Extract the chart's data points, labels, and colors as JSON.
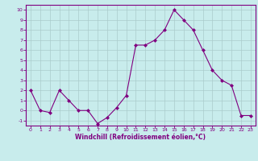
{
  "x": [
    0,
    1,
    2,
    3,
    4,
    5,
    6,
    7,
    8,
    9,
    10,
    11,
    12,
    13,
    14,
    15,
    16,
    17,
    18,
    19,
    20,
    21,
    22,
    23
  ],
  "y": [
    2,
    0,
    -0.2,
    2,
    1,
    0,
    0,
    -1.3,
    -0.7,
    0.3,
    1.5,
    6.5,
    6.5,
    7,
    8,
    10,
    9,
    8,
    6,
    4,
    3,
    2.5,
    -0.5,
    -0.5
  ],
  "line_color": "#800080",
  "marker": "D",
  "ylim": [
    -1.5,
    10.5
  ],
  "xlim": [
    -0.5,
    23.5
  ],
  "yticks": [
    -1,
    0,
    1,
    2,
    3,
    4,
    5,
    6,
    7,
    8,
    9,
    10
  ],
  "xticks": [
    0,
    1,
    2,
    3,
    4,
    5,
    6,
    7,
    8,
    9,
    10,
    11,
    12,
    13,
    14,
    15,
    16,
    17,
    18,
    19,
    20,
    21,
    22,
    23
  ],
  "xlabel": "Windchill (Refroidissement éolien,°C)",
  "xlabel_color": "#800080",
  "tick_color": "#800080",
  "axis_color": "#800080",
  "grid_color": "#aacccc",
  "plot_bg": "#c8ecec",
  "fig_bg": "#c8ecec"
}
